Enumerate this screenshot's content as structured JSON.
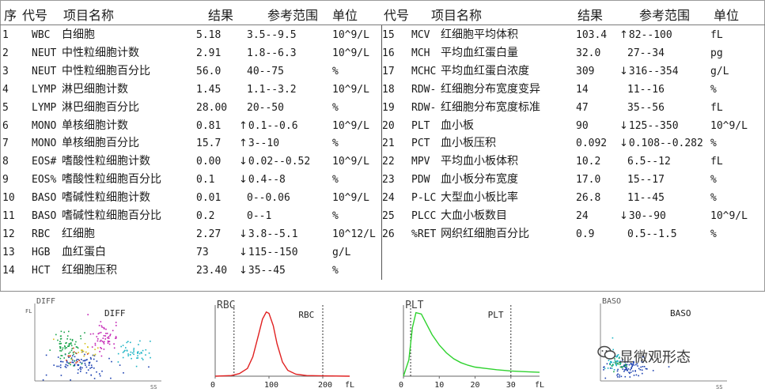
{
  "headers": {
    "left": {
      "seq": "序",
      "code": "代号",
      "name": "项目名称",
      "result": "结果",
      "ref": "参考范围",
      "unit": "单位"
    },
    "right": {
      "code": "代号",
      "name": "项目名称",
      "result": "结果",
      "ref": "参考范围",
      "unit": "单位"
    }
  },
  "left_rows": [
    {
      "no": "1",
      "code": "WBC",
      "name": "白细胞",
      "result": "5.18",
      "flag": "",
      "ref": "3.5--9.5",
      "unit": "10^9/L"
    },
    {
      "no": "2",
      "code": "NEUT",
      "name": "中性粒细胞计数",
      "result": "2.91",
      "flag": "",
      "ref": "1.8--6.3",
      "unit": "10^9/L"
    },
    {
      "no": "3",
      "code": "NEUT",
      "name": "中性粒细胞百分比",
      "result": "56.0",
      "flag": "",
      "ref": "40--75",
      "unit": "%"
    },
    {
      "no": "4",
      "code": "LYMP",
      "name": "淋巴细胞计数",
      "result": "1.45",
      "flag": "",
      "ref": "1.1--3.2",
      "unit": "10^9/L"
    },
    {
      "no": "5",
      "code": "LYMP",
      "name": "淋巴细胞百分比",
      "result": "28.00",
      "flag": "",
      "ref": "20--50",
      "unit": "%"
    },
    {
      "no": "6",
      "code": "MONO",
      "name": "单核细胞计数",
      "result": "0.81",
      "flag": "up",
      "ref": "0.1--0.6",
      "unit": "10^9/L"
    },
    {
      "no": "7",
      "code": "MONO",
      "name": "单核细胞百分比",
      "result": "15.7",
      "flag": "up",
      "ref": "3--10",
      "unit": "%"
    },
    {
      "no": "8",
      "code": "EOS#",
      "name": "嗜酸性粒细胞计数",
      "result": "0.00",
      "flag": "down",
      "ref": "0.02--0.52",
      "unit": "10^9/L"
    },
    {
      "no": "9",
      "code": "EOS%",
      "name": "嗜酸性粒细胞百分比",
      "result": "0.1",
      "flag": "down",
      "ref": "0.4--8",
      "unit": "%"
    },
    {
      "no": "10",
      "code": "BASO",
      "name": "嗜碱性粒细胞计数",
      "result": "0.01",
      "flag": "",
      "ref": "0--0.06",
      "unit": "10^9/L"
    },
    {
      "no": "11",
      "code": "BASO",
      "name": "嗜碱性粒细胞百分比",
      "result": "0.2",
      "flag": "",
      "ref": "0--1",
      "unit": "%"
    },
    {
      "no": "12",
      "code": "RBC",
      "name": "红细胞",
      "result": "2.27",
      "flag": "down",
      "ref": "3.8--5.1",
      "unit": "10^12/L"
    },
    {
      "no": "13",
      "code": "HGB",
      "name": "血红蛋白",
      "result": "73",
      "flag": "down",
      "ref": "115--150",
      "unit": "g/L"
    },
    {
      "no": "14",
      "code": "HCT",
      "name": "红细胞压积",
      "result": "23.40",
      "flag": "down",
      "ref": "35--45",
      "unit": "%"
    }
  ],
  "right_rows": [
    {
      "no": "15",
      "code": "MCV",
      "name": "红细胞平均体积",
      "result": "103.4",
      "flag": "up",
      "ref": "82--100",
      "unit": "fL"
    },
    {
      "no": "16",
      "code": "MCH",
      "name": "平均血红蛋白量",
      "result": "32.0",
      "flag": "",
      "ref": "27--34",
      "unit": "pg"
    },
    {
      "no": "17",
      "code": "MCHC",
      "name": "平均血红蛋白浓度",
      "result": "309",
      "flag": "down",
      "ref": "316--354",
      "unit": "g/L"
    },
    {
      "no": "18",
      "code": "RDW-",
      "name": "红细胞分布宽度变异",
      "result": "14",
      "flag": "",
      "ref": "11--16",
      "unit": "%"
    },
    {
      "no": "19",
      "code": "RDW-",
      "name": "红细胞分布宽度标准",
      "result": "47",
      "flag": "",
      "ref": "35--56",
      "unit": "fL"
    },
    {
      "no": "20",
      "code": "PLT",
      "name": "血小板",
      "result": "90",
      "flag": "down",
      "ref": "125--350",
      "unit": "10^9/L"
    },
    {
      "no": "21",
      "code": "PCT",
      "name": "血小板压积",
      "result": "0.092",
      "flag": "down",
      "ref": "0.108--0.282",
      "unit": "%"
    },
    {
      "no": "22",
      "code": "MPV",
      "name": "平均血小板体积",
      "result": "10.2",
      "flag": "",
      "ref": "6.5--12",
      "unit": "fL"
    },
    {
      "no": "23",
      "code": "PDW",
      "name": "血小板分布宽度",
      "result": "17.0",
      "flag": "",
      "ref": "15--17",
      "unit": "%"
    },
    {
      "no": "24",
      "code": "P-LC",
      "name": "大型血小板比率",
      "result": "26.8",
      "flag": "",
      "ref": "11--45",
      "unit": "%"
    },
    {
      "no": "25",
      "code": "PLCC",
      "name": "大血小板数目",
      "result": "24",
      "flag": "down",
      "ref": "30--90",
      "unit": "10^9/L"
    },
    {
      "no": "26",
      "code": "%RET",
      "name": "网织红细胞百分比",
      "result": "0.9",
      "flag": "",
      "ref": "0.5--1.5",
      "unit": "%"
    }
  ],
  "arrows": {
    "up": "↑",
    "down": "↓"
  },
  "chart_data": [
    {
      "type": "scatter",
      "title": "DIFF",
      "corner_label": "DIFF",
      "xlabel": "SS",
      "ylabel": "FL",
      "clusters": [
        {
          "color": "#1a3fb0",
          "cx": 0.35,
          "cy": 0.78,
          "sx": 0.14,
          "sy": 0.08,
          "n": 90
        },
        {
          "color": "#18a34a",
          "cx": 0.25,
          "cy": 0.55,
          "sx": 0.06,
          "sy": 0.12,
          "n": 70
        },
        {
          "color": "#c21fb2",
          "cx": 0.55,
          "cy": 0.45,
          "sx": 0.05,
          "sy": 0.09,
          "n": 55
        },
        {
          "color": "#1bb3c4",
          "cx": 0.78,
          "cy": 0.62,
          "sx": 0.07,
          "sy": 0.06,
          "n": 45
        },
        {
          "color": "#d6c21a",
          "cx": 0.4,
          "cy": 0.6,
          "sx": 0.06,
          "sy": 0.06,
          "n": 18
        },
        {
          "color": "#d23a1a",
          "cx": 0.33,
          "cy": 0.7,
          "sx": 0.05,
          "sy": 0.05,
          "n": 12
        }
      ]
    },
    {
      "type": "line",
      "title": "RBC",
      "corner_label": "RBC",
      "xlabel": "fL",
      "x_ticks": [
        0,
        100,
        200
      ],
      "xlim": [
        0,
        250
      ],
      "markers": [
        35,
        200
      ],
      "color": "#e02020",
      "x": [
        0,
        30,
        45,
        60,
        70,
        80,
        88,
        95,
        100,
        108,
        115,
        125,
        135,
        150,
        170,
        200,
        250
      ],
      "y": [
        0,
        0.01,
        0.04,
        0.12,
        0.3,
        0.62,
        0.88,
        0.99,
        0.97,
        0.78,
        0.5,
        0.22,
        0.09,
        0.03,
        0.01,
        0.005,
        0
      ]
    },
    {
      "type": "line",
      "title": "PLT",
      "corner_label": "PLT",
      "xlabel": "fL",
      "x_ticks": [
        0,
        10,
        20,
        30
      ],
      "xlim": [
        0,
        38
      ],
      "markers": [
        2,
        30
      ],
      "color": "#2ed22e",
      "x": [
        0,
        1.5,
        2.5,
        3.5,
        5,
        6.5,
        8,
        10,
        12,
        14,
        16,
        18,
        20,
        23,
        26,
        30,
        34,
        38
      ],
      "y": [
        0,
        0.25,
        0.75,
        0.98,
        0.96,
        0.8,
        0.64,
        0.48,
        0.36,
        0.27,
        0.21,
        0.17,
        0.14,
        0.12,
        0.1,
        0.08,
        0.07,
        0.06
      ]
    },
    {
      "type": "scatter",
      "title": "BASO",
      "corner_label": "BASO",
      "xlabel": "SS",
      "ylabel": "",
      "clusters": [
        {
          "color": "#1a3fb0",
          "cx": 0.22,
          "cy": 0.82,
          "sx": 0.1,
          "sy": 0.06,
          "n": 80
        },
        {
          "color": "#1bb3c4",
          "cx": 0.1,
          "cy": 0.72,
          "sx": 0.04,
          "sy": 0.07,
          "n": 40
        },
        {
          "color": "#18a34a",
          "cx": 0.14,
          "cy": 0.78,
          "sx": 0.03,
          "sy": 0.04,
          "n": 20
        }
      ]
    }
  ],
  "watermark": {
    "text": "显微观形态",
    "icon": "wechat-icon"
  }
}
